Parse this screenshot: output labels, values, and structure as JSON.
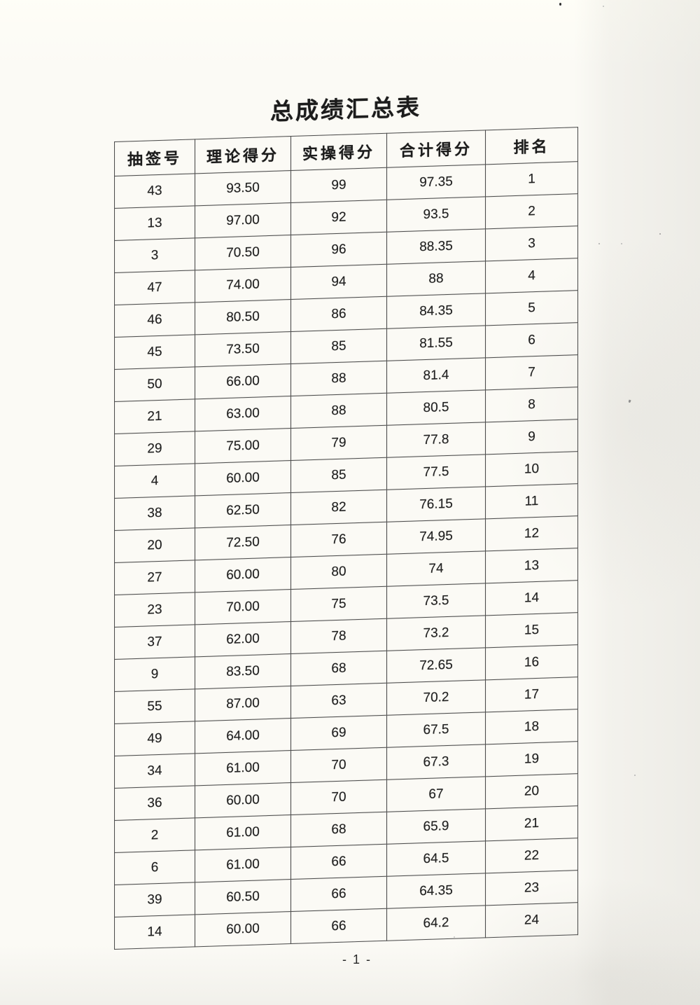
{
  "title": "总成绩汇总表",
  "table": {
    "columns": [
      "抽签号",
      "理论得分",
      "实操得分",
      "合计得分",
      "排名"
    ],
    "rows": [
      [
        "43",
        "93.50",
        "99",
        "97.35",
        "1"
      ],
      [
        "13",
        "97.00",
        "92",
        "93.5",
        "2"
      ],
      [
        "3",
        "70.50",
        "96",
        "88.35",
        "3"
      ],
      [
        "47",
        "74.00",
        "94",
        "88",
        "4"
      ],
      [
        "46",
        "80.50",
        "86",
        "84.35",
        "5"
      ],
      [
        "45",
        "73.50",
        "85",
        "81.55",
        "6"
      ],
      [
        "50",
        "66.00",
        "88",
        "81.4",
        "7"
      ],
      [
        "21",
        "63.00",
        "88",
        "80.5",
        "8"
      ],
      [
        "29",
        "75.00",
        "79",
        "77.8",
        "9"
      ],
      [
        "4",
        "60.00",
        "85",
        "77.5",
        "10"
      ],
      [
        "38",
        "62.50",
        "82",
        "76.15",
        "11"
      ],
      [
        "20",
        "72.50",
        "76",
        "74.95",
        "12"
      ],
      [
        "27",
        "60.00",
        "80",
        "74",
        "13"
      ],
      [
        "23",
        "70.00",
        "75",
        "73.5",
        "14"
      ],
      [
        "37",
        "62.00",
        "78",
        "73.2",
        "15"
      ],
      [
        "9",
        "83.50",
        "68",
        "72.65",
        "16"
      ],
      [
        "55",
        "87.00",
        "63",
        "70.2",
        "17"
      ],
      [
        "49",
        "64.00",
        "69",
        "67.5",
        "18"
      ],
      [
        "34",
        "61.00",
        "70",
        "67.3",
        "19"
      ],
      [
        "36",
        "60.00",
        "70",
        "67",
        "20"
      ],
      [
        "2",
        "61.00",
        "68",
        "65.9",
        "21"
      ],
      [
        "6",
        "61.00",
        "66",
        "64.5",
        "22"
      ],
      [
        "39",
        "60.50",
        "66",
        "64.35",
        "23"
      ],
      [
        "14",
        "60.00",
        "66",
        "64.2",
        "24"
      ]
    ]
  },
  "footer": {
    "page_number": "- 1 -"
  },
  "colors": {
    "paper": "#fbfaf5",
    "ink": "#212121",
    "table_border": "#4d4d4d"
  }
}
